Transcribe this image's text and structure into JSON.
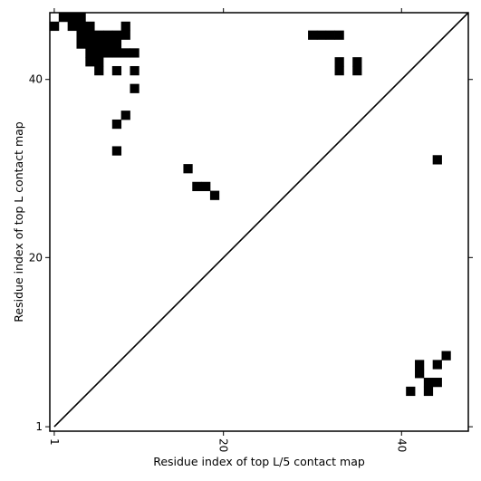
{
  "chart_data": {
    "type": "heatmap",
    "xlabel": "Residue index of top L/5 contact map",
    "ylabel": "Residue index of top L contact map",
    "xlim": [
      0.5,
      47.5
    ],
    "ylim": [
      0.5,
      47.5
    ],
    "x_ticks": [
      1,
      20,
      40
    ],
    "y_ticks": [
      1,
      20,
      40
    ],
    "grid": false,
    "diagonal": true,
    "cell_color": "#000000",
    "upper_triangle_contacts": [
      [
        2,
        47
      ],
      [
        3,
        47
      ],
      [
        4,
        47
      ],
      [
        1,
        46
      ],
      [
        3,
        46
      ],
      [
        4,
        46
      ],
      [
        5,
        46
      ],
      [
        9,
        46
      ],
      [
        4,
        45
      ],
      [
        5,
        45
      ],
      [
        6,
        45
      ],
      [
        7,
        45
      ],
      [
        8,
        45
      ],
      [
        9,
        45
      ],
      [
        30,
        45
      ],
      [
        31,
        45
      ],
      [
        32,
        45
      ],
      [
        33,
        45
      ],
      [
        4,
        44
      ],
      [
        5,
        44
      ],
      [
        6,
        44
      ],
      [
        7,
        44
      ],
      [
        8,
        44
      ],
      [
        5,
        43
      ],
      [
        6,
        43
      ],
      [
        7,
        43
      ],
      [
        8,
        43
      ],
      [
        9,
        43
      ],
      [
        10,
        43
      ],
      [
        5,
        42
      ],
      [
        6,
        42
      ],
      [
        33,
        42
      ],
      [
        35,
        42
      ],
      [
        6,
        41
      ],
      [
        8,
        41
      ],
      [
        10,
        41
      ],
      [
        33,
        41
      ],
      [
        35,
        41
      ],
      [
        10,
        39
      ],
      [
        9,
        36
      ],
      [
        8,
        35
      ],
      [
        8,
        32
      ],
      [
        16,
        30
      ],
      [
        17,
        28
      ],
      [
        18,
        28
      ],
      [
        19,
        27
      ]
    ],
    "lower_triangle_contacts": [
      [
        44,
        31
      ],
      [
        45,
        9
      ],
      [
        42,
        8
      ],
      [
        44,
        8
      ],
      [
        42,
        7
      ],
      [
        43,
        6
      ],
      [
        44,
        6
      ],
      [
        41,
        5
      ],
      [
        43,
        5
      ]
    ]
  }
}
